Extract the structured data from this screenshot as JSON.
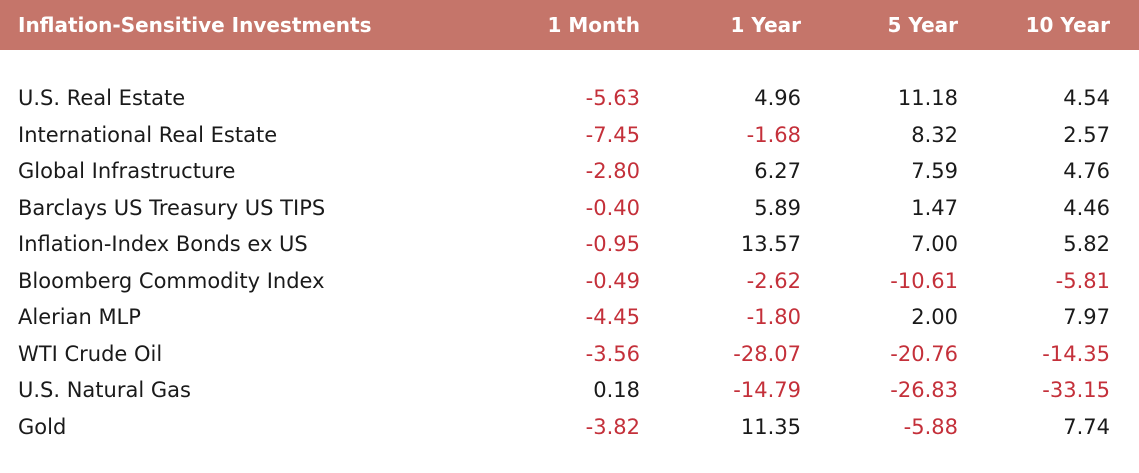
{
  "colors": {
    "header_bg": "#c5756a",
    "header_text": "#ffffff",
    "positive_text": "#1a1a1a",
    "negative_text": "#c4303a"
  },
  "chart_data": {
    "type": "table",
    "columns": [
      "Inflation-Sensitive Investments",
      "1 Month",
      "1 Year",
      "5 Year",
      "10 Year"
    ],
    "rows": [
      {
        "name": "U.S. Real Estate",
        "values": [
          "-5.63",
          "4.96",
          "11.18",
          "4.54"
        ]
      },
      {
        "name": "International Real Estate",
        "values": [
          "-7.45",
          "-1.68",
          "8.32",
          "2.57"
        ]
      },
      {
        "name": "Global Infrastructure",
        "values": [
          "-2.80",
          "6.27",
          "7.59",
          "4.76"
        ]
      },
      {
        "name": "Barclays US Treasury US TIPS",
        "values": [
          "-0.40",
          "5.89",
          "1.47",
          "4.46"
        ]
      },
      {
        "name": "Inflation-Index Bonds ex US",
        "values": [
          "-0.95",
          "13.57",
          "7.00",
          "5.82"
        ]
      },
      {
        "name": "Bloomberg Commodity Index",
        "values": [
          "-0.49",
          "-2.62",
          "-10.61",
          "-5.81"
        ]
      },
      {
        "name": "Alerian MLP",
        "values": [
          "-4.45",
          "-1.80",
          "2.00",
          "7.97"
        ]
      },
      {
        "name": "WTI Crude Oil",
        "values": [
          "-3.56",
          "-28.07",
          "-20.76",
          "-14.35"
        ]
      },
      {
        "name": "U.S. Natural Gas",
        "values": [
          "0.18",
          "-14.79",
          "-26.83",
          "-33.15"
        ]
      },
      {
        "name": "Gold",
        "values": [
          "-3.82",
          "11.35",
          "-5.88",
          "7.74"
        ]
      }
    ]
  }
}
